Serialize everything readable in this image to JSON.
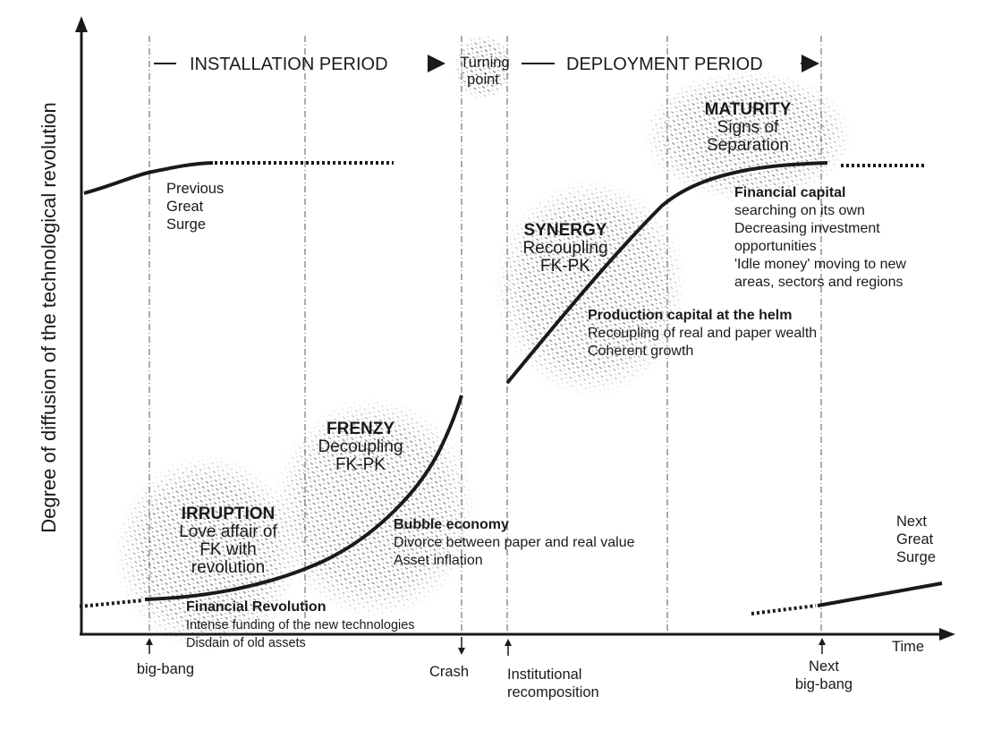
{
  "header": {
    "installation_period": "INSTALLATION PERIOD",
    "turning_point": [
      "Turning",
      "point"
    ],
    "deployment_period": "DEPLOYMENT PERIOD"
  },
  "axes": {
    "y_label": "Degree of diffusion of the technological revolution",
    "x_label": "Time"
  },
  "phases": {
    "irruption": {
      "title": "IRRUPTION",
      "lines": [
        "Love affair of",
        "FK with",
        "revolution"
      ]
    },
    "frenzy": {
      "title": "FRENZY",
      "lines": [
        "Decoupling",
        "FK-PK"
      ]
    },
    "synergy": {
      "title": "SYNERGY",
      "lines": [
        "Recoupling",
        "FK-PK"
      ]
    },
    "maturity": {
      "title": "MATURITY",
      "lines": [
        "Signs of",
        "Separation"
      ]
    }
  },
  "notes": {
    "financial_revolution": {
      "title": "Financial Revolution",
      "lines": [
        "Intense funding of the new technologies",
        "Disdain of old assets"
      ]
    },
    "bubble_economy": {
      "title": "Bubble economy",
      "lines": [
        "Divorce between paper and real value",
        "Asset inflation"
      ]
    },
    "production_capital": {
      "title": "Production capital at the helm",
      "lines": [
        "Recoupling of real and paper wealth",
        "Coherent growth"
      ]
    },
    "financial_capital": {
      "title": "Financial capital",
      "lines": [
        "searching on its own",
        "Decreasing investment",
        "opportunities",
        "'Idle money' moving to new",
        "areas, sectors and regions"
      ]
    }
  },
  "surges": {
    "previous": [
      "Previous",
      "Great",
      "Surge"
    ],
    "next": [
      "Next",
      "Great",
      "Surge"
    ]
  },
  "events": {
    "big_bang": [
      "big-bang"
    ],
    "crash": [
      "Crash"
    ],
    "institutional": [
      "Institutional",
      "recomposition"
    ],
    "next_big_bang": [
      "Next",
      "big-bang"
    ]
  },
  "style": {
    "ink": "#1a1a1a",
    "dashline": "#555555",
    "halftone": "#9a9a9a"
  }
}
